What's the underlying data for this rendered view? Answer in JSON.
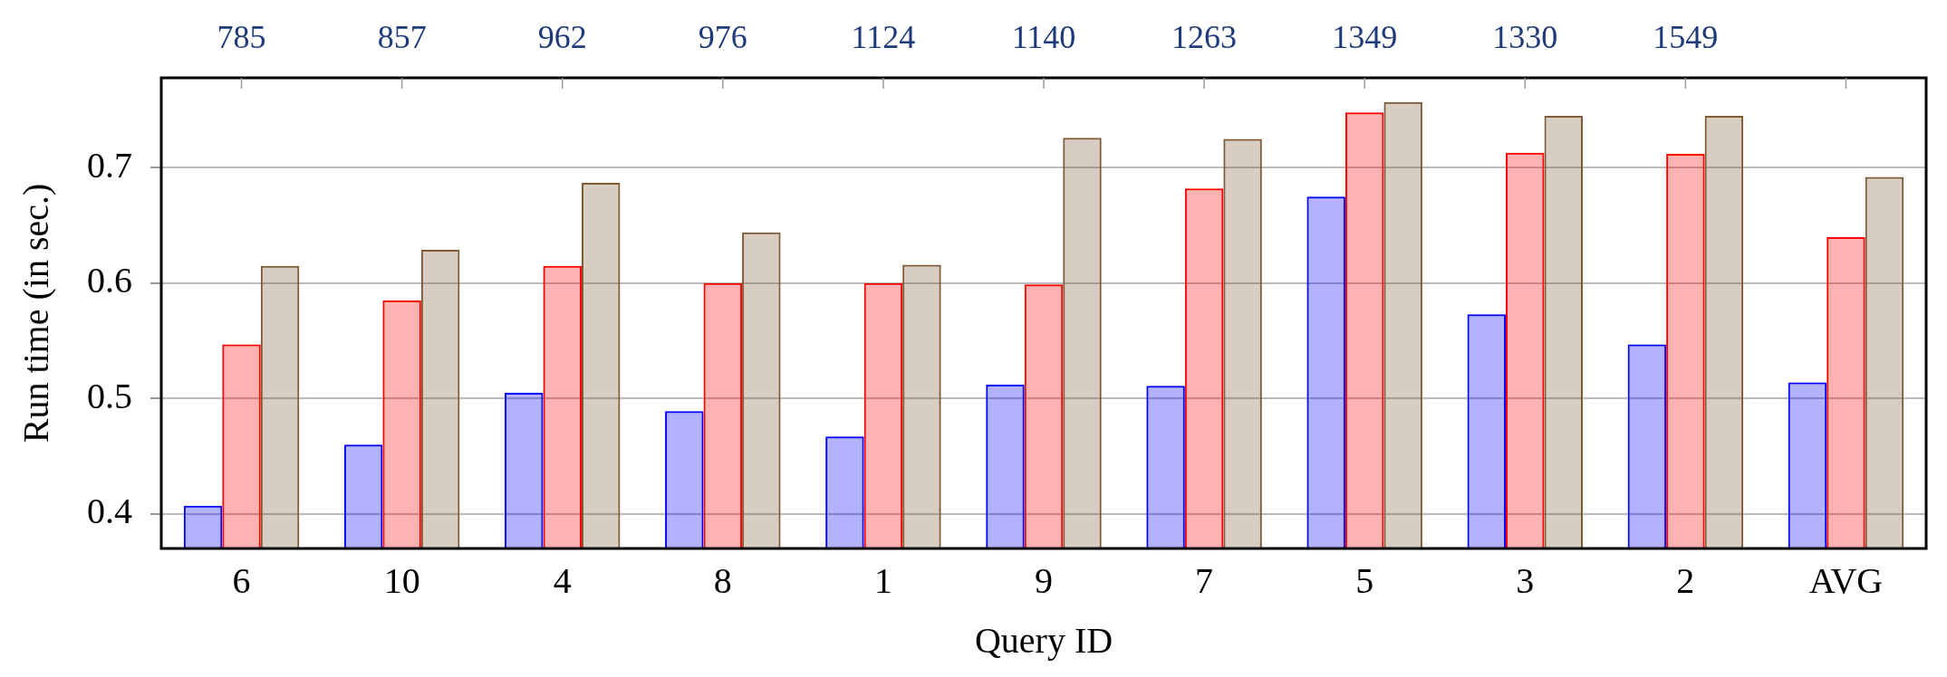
{
  "chart_data": {
    "type": "bar",
    "xlabel": "Query ID",
    "ylabel": "Run time (in sec.)",
    "categories": [
      "6",
      "10",
      "4",
      "8",
      "1",
      "9",
      "7",
      "5",
      "3",
      "2",
      "AVG"
    ],
    "series": [
      {
        "color": "#0000ff",
        "values": [
          0.407,
          0.46,
          0.505,
          0.489,
          0.467,
          0.512,
          0.511,
          0.675,
          0.573,
          0.547,
          0.514
        ]
      },
      {
        "color": "#ff0000",
        "values": [
          0.547,
          0.585,
          0.615,
          0.6,
          0.6,
          0.599,
          0.682,
          0.748,
          0.713,
          0.712,
          0.64
        ]
      },
      {
        "color": "#7f5a36",
        "values": [
          0.615,
          0.629,
          0.687,
          0.644,
          0.616,
          0.726,
          0.725,
          0.757,
          0.745,
          0.745,
          0.692
        ]
      }
    ],
    "ylim": [
      0.37,
      0.778
    ],
    "yticks": [
      0.4,
      0.5,
      0.6,
      0.7
    ],
    "grid": "y",
    "legend": false,
    "annotations": [
      {
        "text": "785",
        "x": "6"
      },
      {
        "text": "857",
        "x": "10"
      },
      {
        "text": "962",
        "x": "4"
      },
      {
        "text": "976",
        "x": "8"
      },
      {
        "text": "1124",
        "x": "1"
      },
      {
        "text": "1140",
        "x": "9"
      },
      {
        "text": "1263",
        "x": "7"
      },
      {
        "text": "1349",
        "x": "5"
      },
      {
        "text": "1330",
        "x": "3"
      },
      {
        "text": "1549",
        "x": "2"
      }
    ]
  }
}
